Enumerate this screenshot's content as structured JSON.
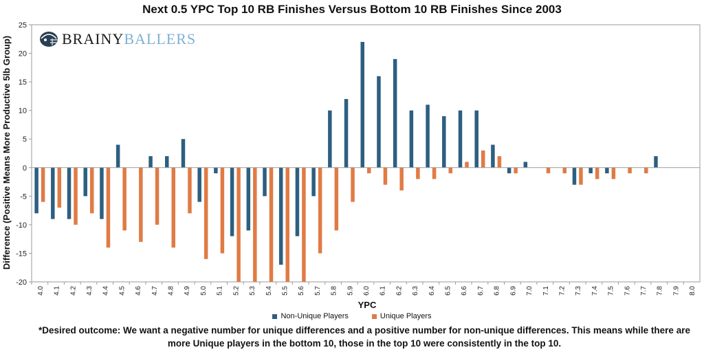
{
  "logo": {
    "text_part1": "BRAINY",
    "text_part2": "BALLERS",
    "icon": "football-helmet-icon"
  },
  "legend": [
    {
      "label": "Non-Unique Players",
      "color": "#2d5f80"
    },
    {
      "label": "Unique Players",
      "color": "#e07b45"
    }
  ],
  "footnote": "*Desired outcome: We want a negative number for unique differences and a positive number for non-unique differences. This means while there are more Unique players in the bottom 10, those in the top 10 were consistently in the top 10.",
  "chart_data": {
    "type": "bar",
    "title": "Next 0.5 YPC Top 10 RB Finishes Versus Bottom 10 RB Finishes Since 2003",
    "xlabel": "YPC",
    "ylabel": "Difference (Positive Means More Productive 5lb Group)",
    "ylim": [
      -20,
      25
    ],
    "yticks": [
      25,
      20,
      15,
      10,
      5,
      0,
      -5,
      -10,
      -15,
      -20
    ],
    "grid": false,
    "legend_position": "bottom",
    "categories": [
      "4.0",
      "4.1",
      "4.2",
      "4.3",
      "4.4",
      "4.5",
      "4.6",
      "4.7",
      "4.8",
      "4.9",
      "5.0",
      "5.1",
      "5.2",
      "5.3",
      "5.4",
      "5.5",
      "5.6",
      "5.7",
      "5.8",
      "5.9",
      "6.0",
      "6.1",
      "6.2",
      "6.3",
      "6.4",
      "6.5",
      "6.6",
      "6.7",
      "6.8",
      "6.9",
      "7.0",
      "7.1",
      "7.2",
      "7.3",
      "7.4",
      "7.5",
      "7.6",
      "7.7",
      "7.8",
      "7.9",
      "8.0"
    ],
    "series": [
      {
        "name": "Non-Unique Players",
        "color": "#2d5f80",
        "values": [
          -8,
          -9,
          -9,
          -5,
          -9,
          4,
          0,
          2,
          2,
          5,
          -6,
          -1,
          -12,
          -11,
          -5,
          -17,
          -12,
          -5,
          10,
          12,
          22,
          16,
          19,
          10,
          11,
          9,
          10,
          10,
          4,
          -1,
          1,
          0,
          0,
          -3,
          -1,
          -1,
          0,
          0,
          2,
          0,
          0
        ]
      },
      {
        "name": "Unique Players",
        "color": "#e07b45",
        "values": [
          -6,
          -7,
          -10,
          -8,
          -14,
          -11,
          -13,
          -10,
          -14,
          -8,
          -16,
          -15,
          -20,
          -20,
          -20,
          -20,
          -20,
          -15,
          -11,
          -6,
          -1,
          -3,
          -4,
          -2,
          -2,
          -1,
          1,
          3,
          2,
          -1,
          0,
          -1,
          -1,
          -3,
          -2,
          -2,
          -1,
          -1,
          0,
          0,
          0
        ]
      }
    ]
  }
}
